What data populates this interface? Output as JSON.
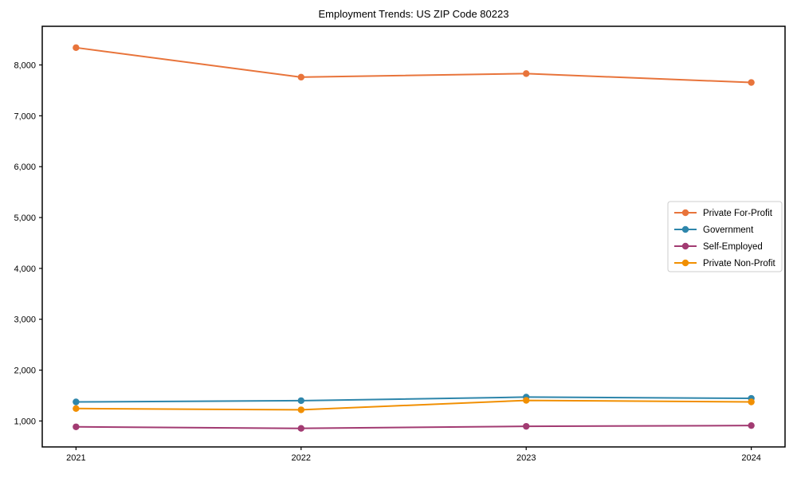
{
  "chart_data": {
    "type": "line",
    "title": "Employment Trends: US ZIP Code 80223",
    "x": [
      2021,
      2022,
      2023,
      2024
    ],
    "x_tick_labels": [
      "2021",
      "2022",
      "2023",
      "2024"
    ],
    "series": [
      {
        "name": "Private For-Profit",
        "color": "#E8743B",
        "values": [
          8340,
          7760,
          7830,
          7655
        ]
      },
      {
        "name": "Government",
        "color": "#2E86AB",
        "values": [
          1375,
          1400,
          1470,
          1445
        ]
      },
      {
        "name": "Self-Employed",
        "color": "#A23B72",
        "values": [
          885,
          855,
          895,
          910
        ]
      },
      {
        "name": "Private Non-Profit",
        "color": "#F18F01",
        "values": [
          1245,
          1220,
          1405,
          1375
        ]
      }
    ],
    "yticks": [
      1000,
      2000,
      3000,
      4000,
      5000,
      6000,
      7000,
      8000
    ],
    "ytick_labels": [
      "1,000",
      "2,000",
      "3,000",
      "4,000",
      "5,000",
      "6,000",
      "7,000",
      "8,000"
    ],
    "ylim": [
      490,
      8760
    ],
    "xlim": [
      2020.85,
      2024.15
    ],
    "grid": false,
    "legend_position": "center right",
    "marker": "circle",
    "line_width": 2,
    "marker_radius": 4.2,
    "axes_color": "#000000",
    "legend_border_color": "#cccccc",
    "background_color": "#ffffff"
  }
}
